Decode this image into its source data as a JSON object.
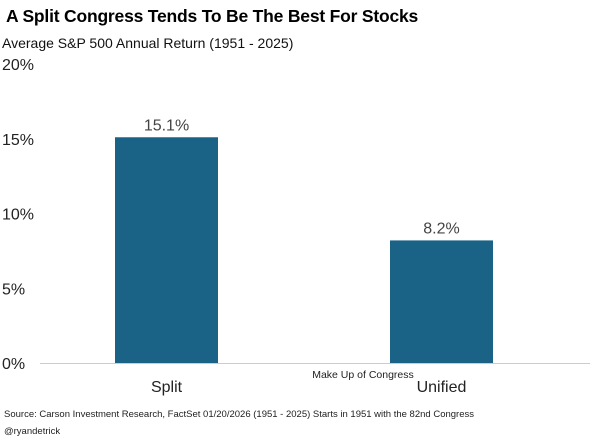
{
  "colors": {
    "bar": "#1a6386",
    "axis": "#cccccc"
  },
  "chart_data": {
    "type": "bar",
    "title": "A Split Congress Tends To Be The Best For Stocks",
    "subtitle": "Average S&P 500 Annual Return (1951 - 2025)",
    "xlabel": "Make Up of Congress",
    "ylabel": "",
    "categories": [
      "Split",
      "Unified"
    ],
    "values": [
      15.1,
      8.2
    ],
    "data_labels": [
      "15.1%",
      "8.2%"
    ],
    "ylim": [
      0,
      20
    ],
    "yticks": [
      {
        "value": 0,
        "label": "0%"
      },
      {
        "value": 5,
        "label": "5%"
      },
      {
        "value": 10,
        "label": "10%"
      },
      {
        "value": 15,
        "label": "15%"
      },
      {
        "value": 20,
        "label": "20%"
      }
    ],
    "grid": false,
    "legend": "none"
  },
  "footer": {
    "source": "Source: Carson Investment Research, FactSet   01/20/2026  (1951 - 2025)  Starts in 1951 with the 82nd Congress",
    "handle": "@ryandetrick"
  }
}
